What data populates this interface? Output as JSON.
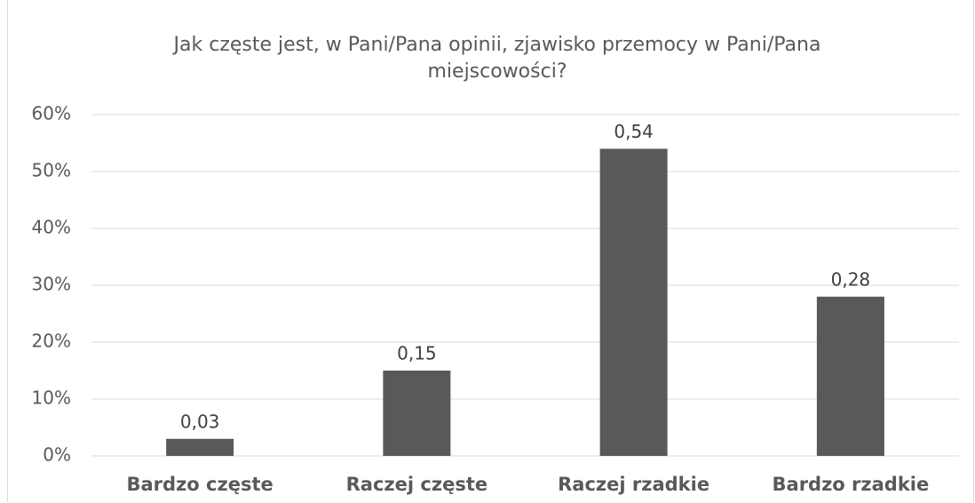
{
  "chart_data": {
    "type": "bar",
    "title": "Jak częste jest, w Pani/Pana opinii, zjawisko przemocy w Pani/Pana miejscowości?",
    "categories": [
      "Bardzo częste",
      "Raczej częste",
      "Raczej rzadkie",
      "Bardzo rzadkie"
    ],
    "values": [
      3,
      15,
      54,
      28
    ],
    "value_labels": [
      "0,03",
      "0,15",
      "0,54",
      "0,28"
    ],
    "color": "#595959",
    "ylim": [
      0,
      60
    ],
    "yticks": [
      {
        "value": 0,
        "label": "0%"
      },
      {
        "value": 10,
        "label": "10%"
      },
      {
        "value": 20,
        "label": "20%"
      },
      {
        "value": 30,
        "label": "30%"
      },
      {
        "value": 40,
        "label": "40%"
      },
      {
        "value": 50,
        "label": "50%"
      },
      {
        "value": 60,
        "label": "60%"
      }
    ],
    "grid": true
  }
}
